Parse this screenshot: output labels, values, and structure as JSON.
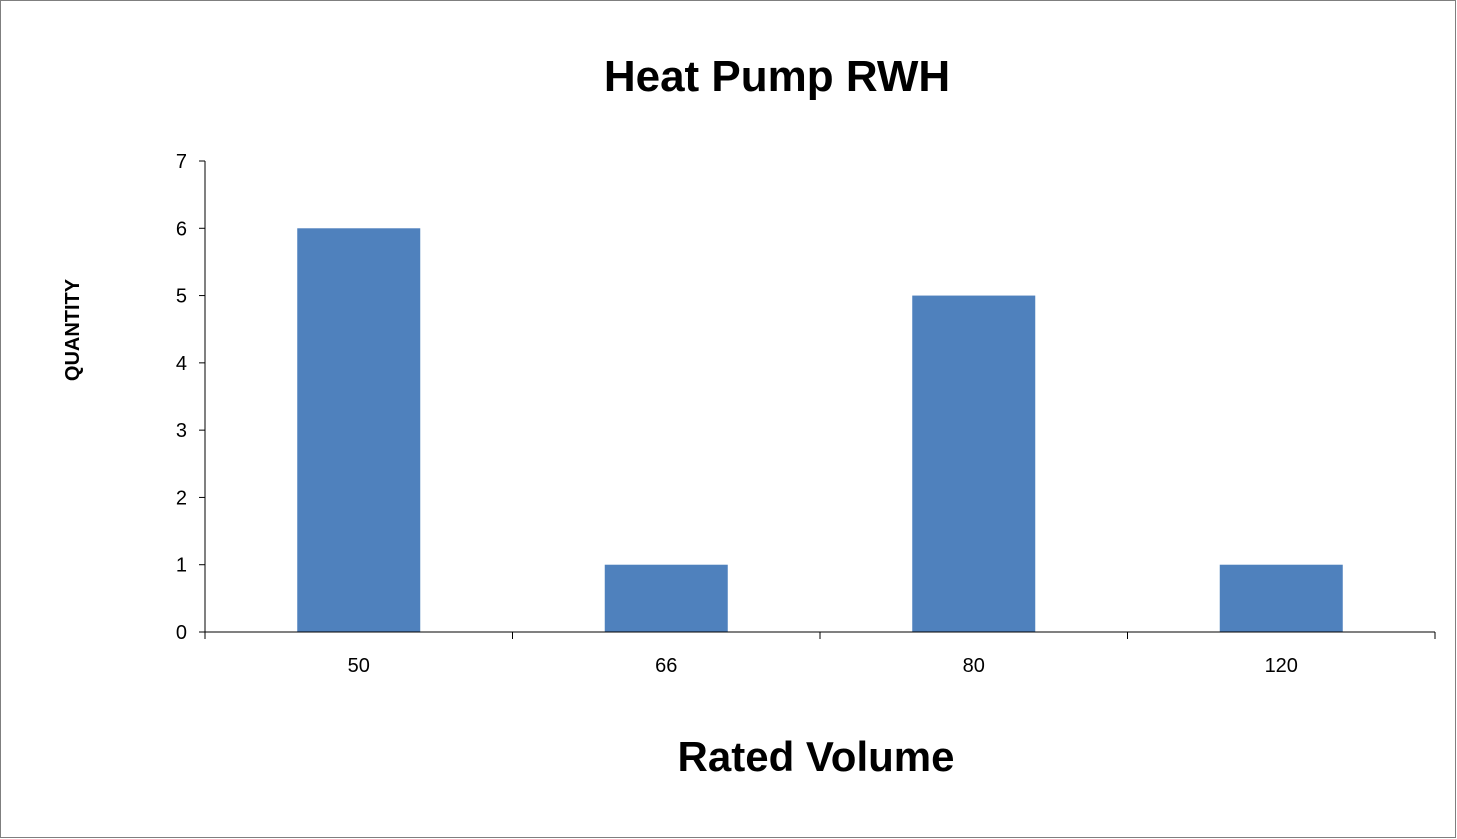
{
  "chart_data": {
    "type": "bar",
    "title": "Heat Pump RWH",
    "xlabel": "Rated Volume",
    "ylabel": "QUANTITY",
    "categories": [
      "50",
      "66",
      "80",
      "120"
    ],
    "values": [
      6,
      1,
      5,
      1
    ],
    "ylim": [
      0,
      7
    ],
    "yticks": [
      "0",
      "1",
      "2",
      "3",
      "4",
      "5",
      "6",
      "7"
    ],
    "grid": false,
    "legend": "none",
    "bar_color": "#4f81bd"
  }
}
